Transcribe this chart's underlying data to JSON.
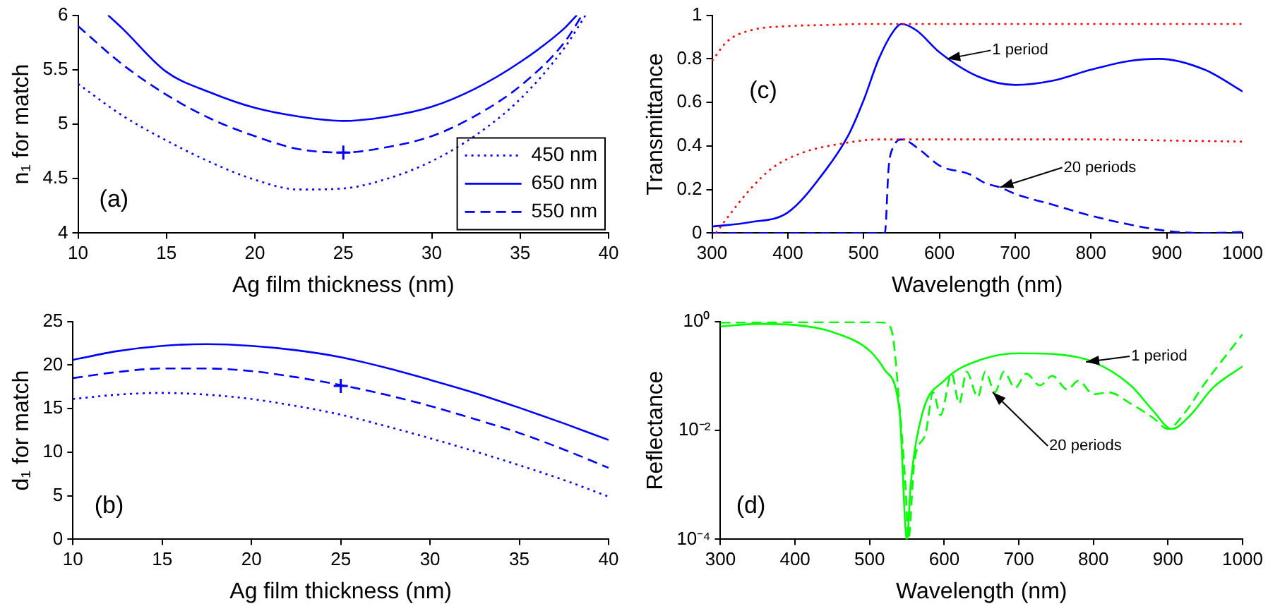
{
  "chart_data": [
    {
      "type": "line",
      "xlabel": "Ag film thickness (nm)",
      "ylabel": "n₁ for match",
      "xlim": [
        10,
        40
      ],
      "xticks": [
        10,
        15,
        20,
        25,
        30,
        35,
        40
      ],
      "ylim": [
        4,
        6
      ],
      "yticks": [
        4,
        4.5,
        5,
        5.5,
        6
      ],
      "grid": false,
      "legend": "bottom right",
      "annotations": [
        "(a)"
      ],
      "series": [
        {
          "name": "450 nm",
          "color": "#0000ff",
          "line_style": "dotted",
          "x": [
            10,
            12.5,
            15,
            17.5,
            20,
            22.5,
            25,
            27.5,
            30,
            32.5,
            35,
            37.5,
            38.7
          ],
          "values": [
            5.37,
            5.08,
            4.85,
            4.65,
            4.49,
            4.4,
            4.41,
            4.5,
            4.66,
            4.9,
            5.23,
            5.7,
            6.0
          ]
        },
        {
          "name": "650 nm",
          "color": "#0000ff",
          "line_style": "solid",
          "x": [
            11.7,
            12.5,
            15,
            17.5,
            20,
            22.5,
            25,
            27.5,
            30,
            32.5,
            35,
            37.5,
            38.2
          ],
          "values": [
            6.0,
            5.88,
            5.48,
            5.29,
            5.15,
            5.07,
            5.03,
            5.07,
            5.16,
            5.33,
            5.57,
            5.88,
            6.0
          ]
        },
        {
          "name": "550 nm",
          "color": "#0000ff",
          "line_style": "dashed",
          "x": [
            10,
            12.5,
            15,
            17.5,
            20,
            22.5,
            25,
            27.5,
            30,
            32.5,
            35,
            37.5,
            38.5
          ],
          "values": [
            5.9,
            5.55,
            5.27,
            5.05,
            4.89,
            4.77,
            4.74,
            4.79,
            4.89,
            5.08,
            5.35,
            5.75,
            6.0
          ]
        },
        {
          "type": "scatter",
          "color": "#0000ff",
          "marker": "cross",
          "x": [
            25
          ],
          "values": [
            4.74
          ]
        }
      ]
    },
    {
      "type": "line",
      "xlabel": "Ag film thickness (nm)",
      "ylabel": "d₁ for match",
      "xlim": [
        10,
        40
      ],
      "xticks": [
        10,
        15,
        20,
        25,
        30,
        35,
        40
      ],
      "ylim": [
        0,
        25
      ],
      "yticks": [
        0,
        5,
        10,
        15,
        20,
        25
      ],
      "grid": false,
      "annotations": [
        "(b)"
      ],
      "series": [
        {
          "color": "#0000ff",
          "line_style": "dotted",
          "x": [
            10,
            12.5,
            15,
            17.5,
            20,
            22.5,
            25,
            27.5,
            30,
            32.5,
            35,
            37.5,
            40
          ],
          "values": [
            16.1,
            16.6,
            16.8,
            16.6,
            16.1,
            15.3,
            14.3,
            13.0,
            11.6,
            10.1,
            8.5,
            6.8,
            4.9
          ]
        },
        {
          "color": "#0000ff",
          "line_style": "solid",
          "x": [
            10,
            12.5,
            15,
            17.5,
            20,
            22.5,
            25,
            27.5,
            30,
            32.5,
            35,
            37.5,
            40
          ],
          "values": [
            20.6,
            21.6,
            22.2,
            22.4,
            22.2,
            21.7,
            20.9,
            19.7,
            18.3,
            16.8,
            15.1,
            13.3,
            11.4
          ]
        },
        {
          "color": "#0000ff",
          "line_style": "dashed",
          "x": [
            10,
            12.5,
            15,
            17.5,
            20,
            22.5,
            25,
            27.5,
            30,
            32.5,
            35,
            37.5,
            40
          ],
          "values": [
            18.5,
            19.2,
            19.6,
            19.6,
            19.3,
            18.6,
            17.7,
            16.6,
            15.3,
            13.8,
            12.2,
            10.3,
            8.2
          ]
        },
        {
          "type": "scatter",
          "color": "#0000ff",
          "marker": "cross",
          "x": [
            25
          ],
          "values": [
            17.6
          ]
        }
      ]
    },
    {
      "type": "line",
      "xlabel": "Wavelength (nm)",
      "ylabel": "Transmittance",
      "xlim": [
        300,
        1000
      ],
      "xticks": [
        300,
        400,
        500,
        600,
        700,
        800,
        900,
        1000
      ],
      "ylim": [
        0,
        1
      ],
      "yticks": [
        0,
        0.2,
        0.4,
        0.6,
        0.8,
        1
      ],
      "grid": false,
      "annotations": [
        "(c)",
        {
          "text": "1 period",
          "x": 610,
          "y": 0.8
        },
        {
          "text": "20 periods",
          "x": 680,
          "y": 0.21
        }
      ],
      "series": [
        {
          "color": "#ff0000",
          "line_style": "dotted",
          "x": [
            300,
            320,
            350,
            400,
            450,
            500,
            600,
            700,
            800,
            900,
            1000
          ],
          "values": [
            0.79,
            0.88,
            0.93,
            0.95,
            0.955,
            0.96,
            0.96,
            0.96,
            0.96,
            0.96,
            0.96
          ]
        },
        {
          "color": "#ff0000",
          "line_style": "dotted",
          "x": [
            305,
            320,
            350,
            380,
            420,
            470,
            520,
            600,
            700,
            800,
            900,
            1000
          ],
          "values": [
            0.0,
            0.07,
            0.2,
            0.3,
            0.37,
            0.41,
            0.43,
            0.43,
            0.43,
            0.43,
            0.425,
            0.42
          ]
        },
        {
          "color": "#0000ff",
          "line_style": "solid",
          "x": [
            300,
            350,
            400,
            450,
            480,
            500,
            520,
            540,
            550,
            570,
            600,
            650,
            700,
            750,
            800,
            850,
            890,
            950,
            1000
          ],
          "values": [
            0.03,
            0.05,
            0.095,
            0.29,
            0.45,
            0.61,
            0.8,
            0.93,
            0.96,
            0.93,
            0.83,
            0.72,
            0.68,
            0.7,
            0.75,
            0.79,
            0.8,
            0.75,
            0.65
          ]
        },
        {
          "color": "#0000ff",
          "line_style": "dashed",
          "x": [
            300,
            400,
            500,
            528,
            533,
            540,
            550,
            575,
            600,
            640,
            660,
            680,
            700,
            750,
            800,
            850,
            900,
            950,
            1000
          ],
          "values": [
            0,
            0,
            0,
            0,
            0.3,
            0.4,
            0.43,
            0.38,
            0.31,
            0.27,
            0.23,
            0.21,
            0.18,
            0.13,
            0.08,
            0.04,
            0.01,
            0,
            0.005
          ]
        }
      ]
    },
    {
      "type": "line",
      "xlabel": "Wavelength (nm)",
      "ylabel": "Reflectance",
      "xlim": [
        300,
        1000
      ],
      "xticks": [
        300,
        400,
        500,
        600,
        700,
        800,
        900,
        1000
      ],
      "ylim": [
        0.0001,
        1
      ],
      "yticks": [
        {
          "value": 0.0001,
          "label": "10⁻⁴"
        },
        {
          "value": 0.01,
          "label": "10⁻²"
        },
        {
          "value": 1,
          "label": "10⁰"
        }
      ],
      "log": "y",
      "grid": false,
      "annotations": [
        "(d)",
        {
          "text": "1 period",
          "x": 790,
          "y": 0.18
        },
        {
          "text": "20 periods",
          "x": 665,
          "y": 0.05
        }
      ],
      "series": [
        {
          "color": "#00ff00",
          "line_style": "solid",
          "x": [
            300,
            350,
            400,
            450,
            500,
            520,
            540,
            550,
            555,
            570,
            600,
            650,
            700,
            750,
            800,
            850,
            880,
            905,
            930,
            960,
            1000
          ],
          "values": [
            0.81,
            0.9,
            0.86,
            0.64,
            0.29,
            0.13,
            0.023,
            0.0001,
            0.001,
            0.019,
            0.082,
            0.2,
            0.26,
            0.25,
            0.18,
            0.067,
            0.023,
            0.0106,
            0.019,
            0.06,
            0.15
          ]
        },
        {
          "color": "#00ff00",
          "line_style": "dashed",
          "x": [
            300,
            400,
            500,
            520,
            530,
            540,
            548,
            552,
            560,
            575,
            585,
            595,
            610,
            620,
            630,
            645,
            655,
            668,
            680,
            695,
            710,
            728,
            745,
            765,
            780,
            800,
            820,
            850,
            880,
            900,
            920,
            950,
            1000
          ],
          "values": [
            0.95,
            0.97,
            0.97,
            0.95,
            0.64,
            0.028,
            0.001,
            0.0001,
            0.0027,
            0.0087,
            0.05,
            0.019,
            0.11,
            0.031,
            0.12,
            0.041,
            0.12,
            0.05,
            0.12,
            0.06,
            0.11,
            0.067,
            0.1,
            0.056,
            0.082,
            0.046,
            0.05,
            0.031,
            0.017,
            0.0106,
            0.019,
            0.075,
            0.58
          ]
        }
      ]
    }
  ]
}
